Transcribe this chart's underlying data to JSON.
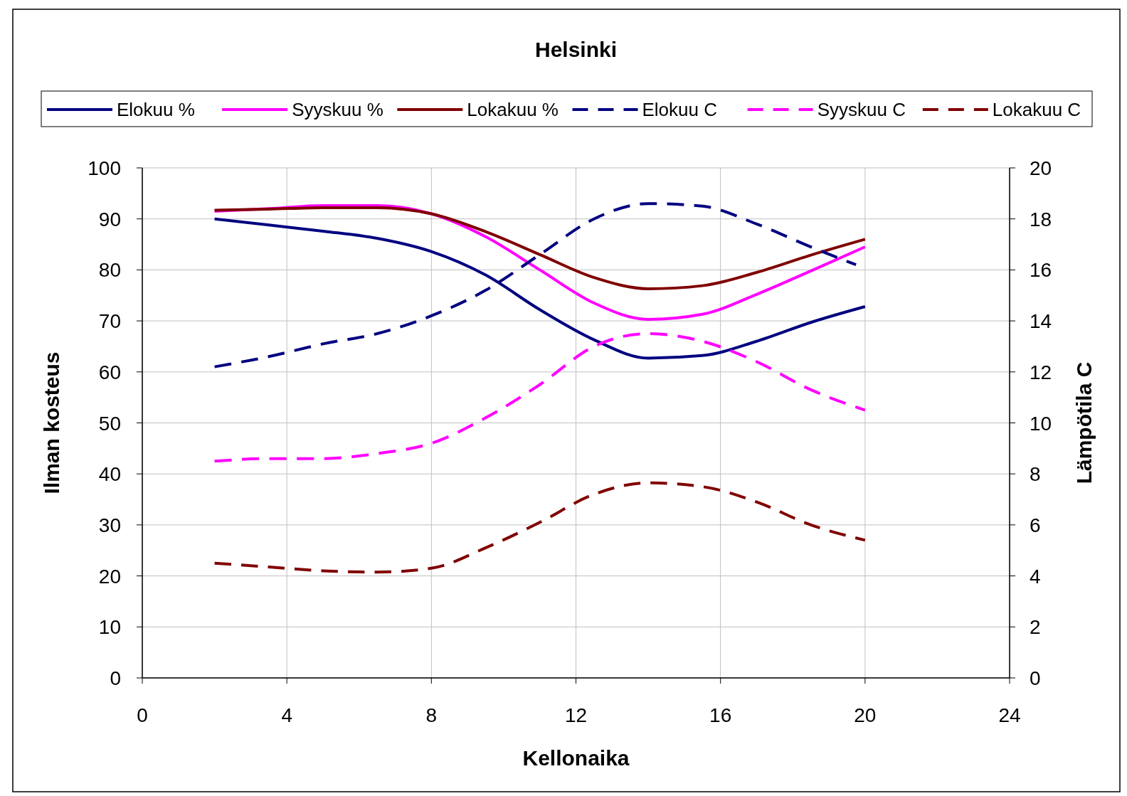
{
  "chart_data": {
    "type": "line",
    "title": "Helsinki",
    "xlabel": "Kellonaika",
    "ylabel": "Ilman kosteus",
    "y2label": "Lämpötila C",
    "x": [
      2,
      3.5,
      5,
      6.5,
      8,
      9.5,
      11,
      12.5,
      14,
      15.5,
      17,
      18.5,
      20
    ],
    "xlim": [
      0,
      24
    ],
    "xticks": [
      0,
      4,
      8,
      12,
      16,
      20,
      24
    ],
    "ylim": [
      0,
      100
    ],
    "yticks": [
      0,
      10,
      20,
      30,
      40,
      50,
      60,
      70,
      80,
      90,
      100
    ],
    "y2lim": [
      0,
      20
    ],
    "y2ticks": [
      0,
      2,
      4,
      6,
      8,
      10,
      12,
      14,
      16,
      18,
      20
    ],
    "grid": true,
    "legend": "top",
    "marker": "none",
    "series": [
      {
        "name": "Elokuu %",
        "color": "#000080",
        "line_style": "solid",
        "values": [
          90,
          88.8,
          87.6,
          86.2,
          83.6,
          79,
          72.2,
          66.3,
          62.7,
          63.2,
          66,
          69.7,
          72.8
        ]
      },
      {
        "name": "Syyskuu %",
        "color": "#ff00ff",
        "line_style": "solid",
        "values": [
          91.5,
          92,
          92.6,
          92.6,
          91,
          86.5,
          80,
          73.5,
          70.3,
          71.3,
          75.2,
          79.8,
          84.5
        ]
      },
      {
        "name": "Lokakuu %",
        "color": "#800000",
        "line_style": "solid",
        "values": [
          91.7,
          91.9,
          92.2,
          92.2,
          91,
          87.5,
          83,
          78.5,
          76.3,
          76.9,
          79.5,
          82.9,
          86
        ]
      },
      {
        "name": "Elokuu C",
        "color": "#000080",
        "line_style": "dashed",
        "axis": "y2",
        "x": [
          2,
          3.5,
          5,
          6.5,
          8,
          9.5,
          11,
          12.5,
          14,
          15.5,
          17,
          18.5,
          19.75
        ],
        "values": [
          12.2,
          12.6,
          13.1,
          13.5,
          14.2,
          15.2,
          16.6,
          18,
          18.6,
          18.5,
          17.8,
          16.9,
          16.2
        ]
      },
      {
        "name": "Syyskuu C",
        "color": "#ff00ff",
        "line_style": "dashed",
        "axis": "y2",
        "values": [
          8.5,
          8.6,
          8.6,
          8.8,
          9.2,
          10.2,
          11.5,
          13,
          13.5,
          13.2,
          12.4,
          11.3,
          10.5
        ]
      },
      {
        "name": "Lokakuu C",
        "color": "#800000",
        "line_style": "dashed",
        "axis": "y2",
        "values": [
          4.5,
          4.35,
          4.2,
          4.15,
          4.3,
          5.1,
          6.1,
          7.2,
          7.65,
          7.5,
          6.9,
          6,
          5.4
        ]
      }
    ]
  }
}
